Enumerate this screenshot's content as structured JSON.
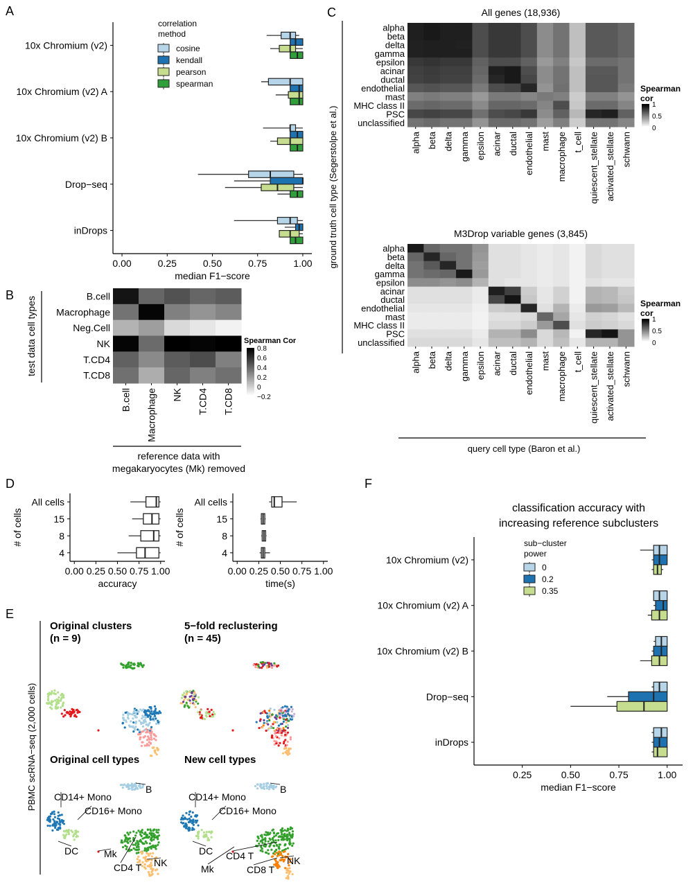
{
  "colors": {
    "cosine": "#b7d5e8",
    "kendall": "#1f72b0",
    "pearson": "#c6dc8e",
    "spearman": "#2f9e3b",
    "sub0": "#b7d5e8",
    "sub02": "#1f72b0",
    "sub035": "#c6dc8e"
  },
  "panels": {
    "A": "A",
    "B": "B",
    "C": "C",
    "D": "D",
    "E": "E",
    "F": "F"
  },
  "chart_data": [
    {
      "panel": "A",
      "type": "box",
      "orientation": "horizontal",
      "categories": [
        "10x Chromium (v2)",
        "10x Chromium (v2) A",
        "10x Chromium (v2) B",
        "Drop−seq",
        "inDrops"
      ],
      "xlabel": "median F1−score",
      "xticks": [
        "0.00",
        "0.25",
        "0.50",
        "0.75",
        "1.00"
      ],
      "xlim": [
        -0.05,
        1.05
      ],
      "legend_title": "correlation\nmethod",
      "legend_title_lines": [
        "correlation",
        "method"
      ],
      "legend_position": "top-right",
      "series": [
        {
          "name": "cosine",
          "color": "#b7d5e8",
          "boxes": [
            [
              0.8,
              0.88,
              0.93,
              0.96,
              0.98
            ],
            [
              0.77,
              0.81,
              0.93,
              1.0,
              1.0
            ],
            [
              0.78,
              0.93,
              0.93,
              0.96,
              1.0
            ],
            [
              0.42,
              0.7,
              0.82,
              0.95,
              1.0
            ],
            [
              0.62,
              0.86,
              0.93,
              0.97,
              1.0
            ]
          ]
        },
        {
          "name": "kendall",
          "color": "#1f72b0",
          "boxes": [
            [
              0.93,
              0.93,
              0.96,
              1.0,
              1.0
            ],
            [
              0.93,
              0.93,
              0.98,
              1.0,
              1.0
            ],
            [
              0.93,
              0.93,
              0.97,
              1.0,
              1.0
            ],
            [
              0.62,
              0.82,
              1.0,
              1.0,
              1.0
            ],
            [
              0.9,
              0.96,
              0.98,
              1.0,
              1.0
            ]
          ]
        },
        {
          "name": "pearson",
          "color": "#c6dc8e",
          "boxes": [
            [
              0.82,
              0.87,
              0.93,
              0.96,
              1.0
            ],
            [
              0.85,
              0.92,
              0.98,
              1.0,
              1.0
            ],
            [
              0.82,
              0.86,
              0.93,
              1.0,
              1.0
            ],
            [
              0.57,
              0.77,
              0.86,
              0.95,
              1.0
            ],
            [
              0.87,
              0.87,
              0.93,
              0.98,
              1.0
            ]
          ]
        },
        {
          "name": "spearman",
          "color": "#2f9e3b",
          "boxes": [
            [
              0.93,
              0.93,
              0.97,
              1.0,
              1.0
            ],
            [
              0.93,
              0.93,
              0.98,
              1.0,
              1.0
            ],
            [
              0.93,
              0.93,
              0.97,
              1.0,
              1.0
            ],
            [
              0.86,
              0.93,
              0.97,
              1.0,
              1.0
            ],
            [
              0.93,
              0.93,
              0.96,
              1.0,
              1.0
            ]
          ]
        }
      ]
    },
    {
      "panel": "B",
      "type": "heatmap",
      "rows": [
        "B.cell",
        "Macrophage",
        "Neg.Cell",
        "NK",
        "T.CD4",
        "T.CD8"
      ],
      "cols": [
        "B.cell",
        "Macrophage",
        "NK",
        "T.CD4",
        "T.CD8"
      ],
      "values": [
        [
          0.72,
          0.4,
          0.48,
          0.4,
          0.44
        ],
        [
          0.35,
          0.78,
          0.3,
          0.22,
          0.28
        ],
        [
          0.1,
          0.18,
          -0.05,
          -0.1,
          -0.15
        ],
        [
          0.78,
          0.38,
          0.82,
          0.78,
          0.8
        ],
        [
          0.42,
          0.26,
          0.44,
          0.5,
          0.3
        ],
        [
          0.36,
          0.12,
          0.4,
          0.3,
          0.36
        ]
      ],
      "ylabel": "test data cell types",
      "xlabel": "reference data with\nmegakaryocytes (Mk) removed",
      "xlabel_lines": [
        "reference data with",
        "megakaryocytes (Mk) removed"
      ],
      "legend_title": "Spearman Cor",
      "legend_ticks": [
        "0.8",
        "0.6",
        "0.4",
        "0.2",
        "0",
        "−0.2"
      ],
      "range": [
        -0.2,
        0.8
      ]
    },
    {
      "panel": "C",
      "type": "heatmap",
      "title": "All genes (18,936)",
      "rows": [
        "alpha",
        "beta",
        "delta",
        "gamma",
        "epsilon",
        "acinar",
        "ductal",
        "endothelial",
        "mast",
        "MHC class II",
        "PSC",
        "unclassified"
      ],
      "cols": [
        "alpha",
        "beta",
        "delta",
        "gamma",
        "epsilon",
        "acinar",
        "ductal",
        "endothelial",
        "mast",
        "macrophage",
        "t_cell",
        "quiescent_stellate",
        "activated_stellate",
        "schwann"
      ],
      "values": [
        [
          0.88,
          0.9,
          0.88,
          0.88,
          0.7,
          0.78,
          0.78,
          0.7,
          0.45,
          0.55,
          0.25,
          0.65,
          0.65,
          0.6
        ],
        [
          0.88,
          0.9,
          0.88,
          0.88,
          0.7,
          0.78,
          0.78,
          0.7,
          0.45,
          0.55,
          0.25,
          0.65,
          0.65,
          0.6
        ],
        [
          0.87,
          0.88,
          0.88,
          0.87,
          0.7,
          0.78,
          0.78,
          0.7,
          0.45,
          0.55,
          0.25,
          0.65,
          0.65,
          0.6
        ],
        [
          0.87,
          0.88,
          0.88,
          0.88,
          0.7,
          0.78,
          0.78,
          0.7,
          0.45,
          0.55,
          0.25,
          0.65,
          0.65,
          0.6
        ],
        [
          0.78,
          0.8,
          0.78,
          0.78,
          0.62,
          0.7,
          0.7,
          0.62,
          0.4,
          0.5,
          0.22,
          0.58,
          0.58,
          0.55
        ],
        [
          0.75,
          0.77,
          0.75,
          0.75,
          0.6,
          0.88,
          0.9,
          0.7,
          0.45,
          0.55,
          0.25,
          0.65,
          0.65,
          0.55
        ],
        [
          0.74,
          0.76,
          0.74,
          0.74,
          0.58,
          0.85,
          0.9,
          0.72,
          0.45,
          0.55,
          0.25,
          0.66,
          0.66,
          0.55
        ],
        [
          0.66,
          0.68,
          0.66,
          0.66,
          0.52,
          0.7,
          0.72,
          0.85,
          0.42,
          0.56,
          0.25,
          0.66,
          0.66,
          0.52
        ],
        [
          0.5,
          0.52,
          0.5,
          0.5,
          0.4,
          0.52,
          0.52,
          0.48,
          0.52,
          0.5,
          0.2,
          0.5,
          0.5,
          0.42
        ],
        [
          0.58,
          0.6,
          0.58,
          0.58,
          0.46,
          0.6,
          0.6,
          0.58,
          0.48,
          0.7,
          0.22,
          0.58,
          0.58,
          0.48
        ],
        [
          0.72,
          0.74,
          0.72,
          0.72,
          0.56,
          0.7,
          0.72,
          0.78,
          0.45,
          0.62,
          0.28,
          0.85,
          0.88,
          0.62
        ],
        [
          0.55,
          0.58,
          0.55,
          0.55,
          0.42,
          0.58,
          0.58,
          0.55,
          0.38,
          0.5,
          0.2,
          0.55,
          0.55,
          0.48
        ]
      ],
      "legend_title": "Spearman\ncor",
      "legend_title_lines": [
        "Spearman",
        "cor"
      ],
      "legend_ticks": [
        "1",
        "0.5",
        "0"
      ],
      "range": [
        0,
        1
      ]
    },
    {
      "panel": "C",
      "type": "heatmap",
      "title": "M3Drop variable genes (3,845)",
      "rows": [
        "alpha",
        "beta",
        "delta",
        "gamma",
        "epsilon",
        "acinar",
        "ductal",
        "endothelial",
        "mast",
        "MHC class II",
        "PSC",
        "unclassified"
      ],
      "cols": [
        "alpha",
        "beta",
        "delta",
        "gamma",
        "epsilon",
        "acinar",
        "ductal",
        "endothelial",
        "mast",
        "macrophage",
        "t_cell",
        "quiescent_stellate",
        "activated_stellate",
        "schwann"
      ],
      "values": [
        [
          0.9,
          0.6,
          0.55,
          0.55,
          0.42,
          0.12,
          0.12,
          0.1,
          0.08,
          0.1,
          0.05,
          0.15,
          0.12,
          0.12
        ],
        [
          0.6,
          0.85,
          0.6,
          0.55,
          0.4,
          0.12,
          0.12,
          0.1,
          0.08,
          0.1,
          0.05,
          0.15,
          0.12,
          0.12
        ],
        [
          0.55,
          0.65,
          0.85,
          0.55,
          0.38,
          0.12,
          0.12,
          0.1,
          0.08,
          0.1,
          0.05,
          0.15,
          0.12,
          0.12
        ],
        [
          0.55,
          0.58,
          0.6,
          0.9,
          0.4,
          0.12,
          0.12,
          0.1,
          0.08,
          0.1,
          0.05,
          0.15,
          0.12,
          0.12
        ],
        [
          0.45,
          0.45,
          0.42,
          0.45,
          0.3,
          0.12,
          0.1,
          0.1,
          0.08,
          0.1,
          0.05,
          0.12,
          0.1,
          0.1
        ],
        [
          0.12,
          0.12,
          0.12,
          0.12,
          0.08,
          0.88,
          0.75,
          0.2,
          0.1,
          0.18,
          0.05,
          0.3,
          0.28,
          0.2
        ],
        [
          0.12,
          0.12,
          0.12,
          0.12,
          0.08,
          0.72,
          0.92,
          0.22,
          0.1,
          0.18,
          0.05,
          0.3,
          0.28,
          0.22
        ],
        [
          0.1,
          0.1,
          0.1,
          0.1,
          0.06,
          0.2,
          0.22,
          0.85,
          0.12,
          0.3,
          0.08,
          0.4,
          0.38,
          0.28
        ],
        [
          0.08,
          0.08,
          0.08,
          0.08,
          0.05,
          0.12,
          0.12,
          0.15,
          0.6,
          0.35,
          0.1,
          0.18,
          0.16,
          0.12
        ],
        [
          0.08,
          0.08,
          0.08,
          0.08,
          0.05,
          0.15,
          0.15,
          0.2,
          0.4,
          0.7,
          0.12,
          0.2,
          0.18,
          0.15
        ],
        [
          0.12,
          0.12,
          0.12,
          0.12,
          0.08,
          0.3,
          0.3,
          0.45,
          0.15,
          0.28,
          0.05,
          0.85,
          0.92,
          0.42
        ],
        [
          0.15,
          0.15,
          0.15,
          0.15,
          0.1,
          0.25,
          0.25,
          0.3,
          0.15,
          0.25,
          0.1,
          0.3,
          0.3,
          0.42
        ]
      ],
      "legend_title": "Spearman\ncor",
      "legend_title_lines": [
        "Spearman",
        "cor"
      ],
      "legend_ticks": [
        "1",
        "0.5",
        "0"
      ],
      "range": [
        0,
        1
      ]
    },
    {
      "panel": "D",
      "type": "box",
      "orientation": "horizontal",
      "categories": [
        "All cells",
        "15",
        "8",
        "4"
      ],
      "ylabel": "# of cells",
      "xlabel": "accuracy",
      "xticks": [
        "0.00",
        "0.25",
        "0.50",
        "0.75",
        "1.00"
      ],
      "xlim": [
        -0.05,
        1.05
      ],
      "boxes": [
        [
          0.65,
          0.83,
          0.95,
          0.98,
          1.0
        ],
        [
          0.67,
          0.8,
          0.9,
          0.98,
          1.0
        ],
        [
          0.63,
          0.77,
          0.92,
          0.98,
          1.0
        ],
        [
          0.5,
          0.72,
          0.82,
          0.98,
          1.0
        ]
      ]
    },
    {
      "panel": "D",
      "type": "box",
      "orientation": "horizontal",
      "categories": [
        "All cells",
        "15",
        "8",
        "4"
      ],
      "ylabel": "# of cells",
      "xlabel": "time(s)",
      "xticks": [
        "0.00",
        "0.25",
        "0.50",
        "0.75",
        "1.00"
      ],
      "xlim": [
        -0.05,
        1.05
      ],
      "boxes": [
        [
          0.37,
          0.4,
          0.43,
          0.52,
          0.69
        ],
        [
          0.27,
          0.28,
          0.3,
          0.32,
          0.33
        ],
        [
          0.28,
          0.29,
          0.31,
          0.33,
          0.34
        ],
        [
          0.26,
          0.28,
          0.3,
          0.32,
          0.38
        ]
      ]
    },
    {
      "panel": "F",
      "type": "box",
      "orientation": "horizontal",
      "title": "classification accuracy with\nincreasing reference subclusters",
      "title_lines": [
        "classification accuracy with",
        "increasing reference subclusters"
      ],
      "categories": [
        "10x Chromium (v2)",
        "10x Chromium (v2) A",
        "10x Chromium (v2) B",
        "Drop−seq",
        "inDrops"
      ],
      "xlabel": "median F1−score",
      "xticks": [
        "0.25",
        "0.50",
        "0.75",
        "1.00"
      ],
      "xlim": [
        0.0,
        1.08
      ],
      "legend_title": "sub−cluster\npower",
      "legend_title_lines": [
        "sub−cluster",
        "power"
      ],
      "legend_position": "top-left",
      "series": [
        {
          "name": "0",
          "color": "#b7d5e8",
          "boxes": [
            [
              0.86,
              0.93,
              0.96,
              1.0,
              1.0
            ],
            [
              0.93,
              0.93,
              0.96,
              1.0,
              1.0
            ],
            [
              0.93,
              0.94,
              0.97,
              1.0,
              1.0
            ],
            [
              0.92,
              0.93,
              0.96,
              1.0,
              1.0
            ],
            [
              0.92,
              0.93,
              0.97,
              1.0,
              1.0
            ]
          ]
        },
        {
          "name": "0.2",
          "color": "#1f72b0",
          "boxes": [
            [
              0.92,
              0.93,
              0.96,
              1.0,
              1.0
            ],
            [
              0.93,
              0.94,
              0.98,
              1.0,
              1.0
            ],
            [
              0.92,
              0.93,
              0.97,
              1.0,
              1.0
            ],
            [
              0.69,
              0.8,
              0.93,
              1.0,
              1.0
            ],
            [
              0.92,
              0.93,
              0.96,
              1.0,
              1.0
            ]
          ]
        },
        {
          "name": "0.35",
          "color": "#c6dc8e",
          "boxes": [
            [
              0.92,
              0.93,
              0.95,
              0.97,
              0.98
            ],
            [
              0.9,
              0.92,
              0.96,
              1.0,
              1.0
            ],
            [
              0.86,
              0.92,
              0.96,
              1.0,
              1.0
            ],
            [
              0.5,
              0.74,
              0.88,
              1.0,
              1.0
            ],
            [
              0.92,
              0.93,
              0.95,
              1.0,
              1.0
            ]
          ]
        }
      ]
    }
  ],
  "umap": {
    "ylabel": "PBMC scRNA−seq (2,000 cells)",
    "original_clusters_title": "Original clusters",
    "original_clusters_n": "(n = 9)",
    "reclustering_title": "5−fold reclustering",
    "reclustering_n": "(n = 45)",
    "original_types_title": "Original cell types",
    "new_types_title": "New cell types",
    "labels_left": [
      "B",
      "CD14+ Mono",
      "CD16+ Mono",
      "DC",
      "Mk",
      "CD4 T",
      "NK"
    ],
    "labels_right": [
      "B",
      "CD14+ Mono",
      "CD16+ Mono",
      "DC",
      "CD4 T",
      "Mk",
      "NK",
      "CD8 T"
    ]
  }
}
